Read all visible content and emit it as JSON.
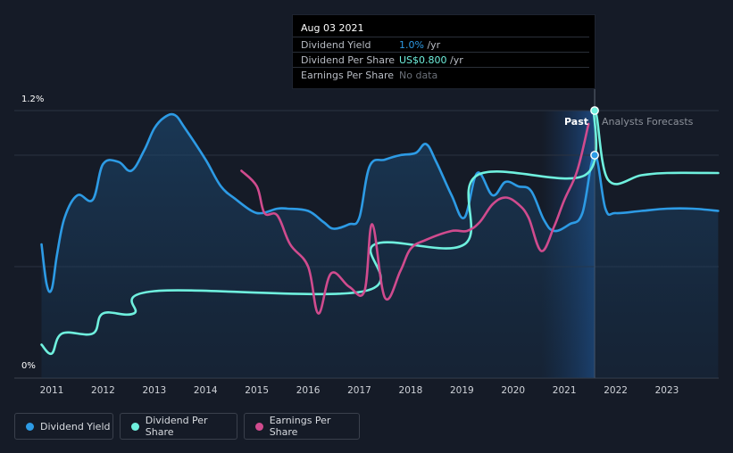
{
  "tooltip": {
    "date": "Aug 03 2021",
    "rows": [
      {
        "label": "Dividend Yield",
        "value": "1.0%",
        "unit": " /yr",
        "color": "#2d9be5"
      },
      {
        "label": "Dividend Per Share",
        "value": "US$0.800",
        "unit": " /yr",
        "color": "#6ff0de"
      },
      {
        "label": "Earnings Per Share",
        "value": "No data",
        "unit": "",
        "color": "#6b7079"
      }
    ]
  },
  "legend": [
    {
      "label": "Dividend Yield",
      "color": "#2d9be5"
    },
    {
      "label": "Dividend Per Share",
      "color": "#6ff0de"
    },
    {
      "label": "Earnings Per Share",
      "color": "#d04b8e"
    }
  ],
  "chart_data": {
    "type": "line",
    "x_ticks": [
      "2011",
      "2012",
      "2013",
      "2014",
      "2015",
      "2016",
      "2017",
      "2018",
      "2019",
      "2020",
      "2021",
      "2022",
      "2023"
    ],
    "y_ticks": [
      "0%",
      "1.2%"
    ],
    "ylim": [
      0,
      1.2
    ],
    "xlim": [
      2010.6,
      2024.0
    ],
    "region_labels": {
      "past": "Past",
      "forecast": "Analysts Forecasts"
    },
    "past_divider": 2021.59,
    "series": [
      {
        "name": "Dividend Yield",
        "color": "#2d9be5",
        "area": true,
        "points": [
          [
            2010.8,
            0.6
          ],
          [
            2010.9,
            0.42
          ],
          [
            2011.0,
            0.4
          ],
          [
            2011.1,
            0.55
          ],
          [
            2011.25,
            0.72
          ],
          [
            2011.5,
            0.82
          ],
          [
            2011.8,
            0.8
          ],
          [
            2012.0,
            0.96
          ],
          [
            2012.3,
            0.97
          ],
          [
            2012.55,
            0.93
          ],
          [
            2012.8,
            1.02
          ],
          [
            2013.0,
            1.12
          ],
          [
            2013.2,
            1.17
          ],
          [
            2013.4,
            1.18
          ],
          [
            2013.6,
            1.12
          ],
          [
            2014.0,
            0.98
          ],
          [
            2014.3,
            0.86
          ],
          [
            2014.6,
            0.8
          ],
          [
            2014.9,
            0.75
          ],
          [
            2015.1,
            0.74
          ],
          [
            2015.4,
            0.76
          ],
          [
            2015.6,
            0.76
          ],
          [
            2016.0,
            0.75
          ],
          [
            2016.3,
            0.7
          ],
          [
            2016.5,
            0.67
          ],
          [
            2016.8,
            0.69
          ],
          [
            2017.0,
            0.72
          ],
          [
            2017.2,
            0.95
          ],
          [
            2017.5,
            0.98
          ],
          [
            2017.8,
            1.0
          ],
          [
            2018.1,
            1.01
          ],
          [
            2018.3,
            1.05
          ],
          [
            2018.5,
            0.97
          ],
          [
            2018.8,
            0.82
          ],
          [
            2019.05,
            0.72
          ],
          [
            2019.3,
            0.92
          ],
          [
            2019.6,
            0.82
          ],
          [
            2019.85,
            0.88
          ],
          [
            2020.1,
            0.86
          ],
          [
            2020.35,
            0.84
          ],
          [
            2020.6,
            0.71
          ],
          [
            2020.8,
            0.66
          ],
          [
            2021.1,
            0.69
          ],
          [
            2021.35,
            0.74
          ],
          [
            2021.59,
            1.0
          ],
          [
            2021.8,
            0.76
          ],
          [
            2022.0,
            0.74
          ],
          [
            2022.5,
            0.75
          ],
          [
            2023.0,
            0.76
          ],
          [
            2023.5,
            0.76
          ],
          [
            2024.0,
            0.75
          ]
        ]
      },
      {
        "name": "Dividend Per Share",
        "color": "#6ff0de",
        "area": false,
        "points": [
          [
            2010.8,
            0.15
          ],
          [
            2011.0,
            0.11
          ],
          [
            2011.2,
            0.2
          ],
          [
            2011.8,
            0.2
          ],
          [
            2012.0,
            0.29
          ],
          [
            2012.6,
            0.29
          ],
          [
            2013.0,
            0.39
          ],
          [
            2017.1,
            0.39
          ],
          [
            2017.3,
            0.6
          ],
          [
            2019.05,
            0.6
          ],
          [
            2019.3,
            0.91
          ],
          [
            2021.4,
            0.91
          ],
          [
            2021.59,
            1.2
          ],
          [
            2021.85,
            0.89
          ],
          [
            2022.5,
            0.91
          ],
          [
            2023.0,
            0.92
          ],
          [
            2024.0,
            0.92
          ]
        ]
      },
      {
        "name": "Earnings Per Share",
        "color": "#d04b8e",
        "area": false,
        "points": [
          [
            2014.7,
            0.93
          ],
          [
            2015.0,
            0.86
          ],
          [
            2015.15,
            0.74
          ],
          [
            2015.4,
            0.73
          ],
          [
            2015.65,
            0.6
          ],
          [
            2016.0,
            0.5
          ],
          [
            2016.2,
            0.29
          ],
          [
            2016.45,
            0.47
          ],
          [
            2016.8,
            0.41
          ],
          [
            2017.1,
            0.39
          ],
          [
            2017.25,
            0.69
          ],
          [
            2017.5,
            0.36
          ],
          [
            2017.8,
            0.48
          ],
          [
            2018.0,
            0.58
          ],
          [
            2018.3,
            0.62
          ],
          [
            2018.8,
            0.66
          ],
          [
            2019.1,
            0.66
          ],
          [
            2019.35,
            0.7
          ],
          [
            2019.6,
            0.78
          ],
          [
            2019.85,
            0.81
          ],
          [
            2020.1,
            0.78
          ],
          [
            2020.3,
            0.72
          ],
          [
            2020.55,
            0.57
          ],
          [
            2020.8,
            0.68
          ],
          [
            2021.0,
            0.8
          ],
          [
            2021.25,
            0.93
          ],
          [
            2021.47,
            1.14
          ]
        ]
      }
    ],
    "markers": [
      {
        "series": "Dividend Yield",
        "x": 2021.59,
        "y": 1.0
      },
      {
        "series": "Dividend Per Share",
        "x": 2021.59,
        "y": 1.2
      }
    ]
  }
}
